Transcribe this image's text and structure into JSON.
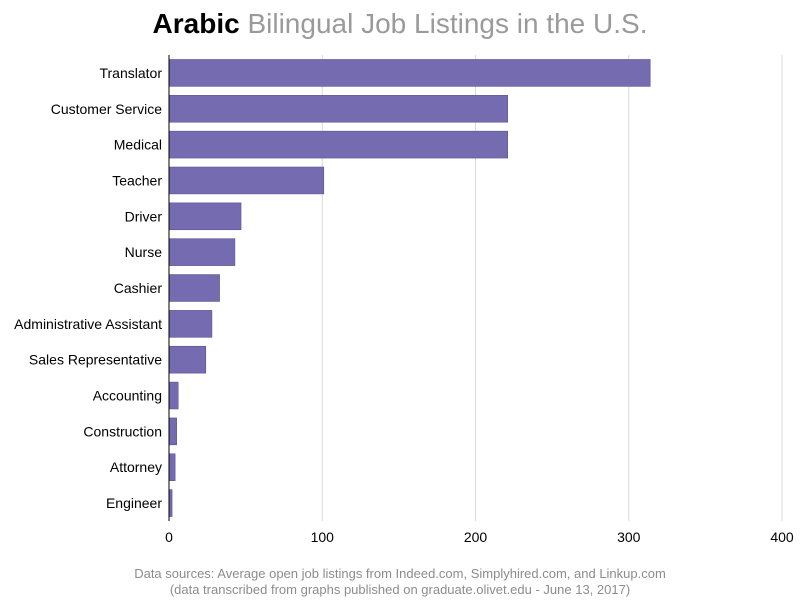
{
  "title": {
    "bold": "Arabic",
    "rest": "Bilingual Job Listings in the U.S."
  },
  "footnote": {
    "line1": "Data sources: Average open job listings from Indeed.com, Simplyhired.com, and Linkup.com",
    "line2": "(data transcribed from graphs published on graduate.olivet.edu - June 13, 2017)"
  },
  "colors": {
    "bar": "#756bb1",
    "grid": "#d9d9d9",
    "axis": "#000000",
    "text": "#000000"
  },
  "chart_data": {
    "type": "bar",
    "orientation": "horizontal",
    "title": "Arabic Bilingual Job Listings in the U.S.",
    "xlabel": "",
    "ylabel": "",
    "xlim": [
      0,
      400
    ],
    "xticks": [
      0,
      100,
      200,
      300,
      400
    ],
    "grid": true,
    "categories": [
      "Translator",
      "Customer Service",
      "Medical",
      "Teacher",
      "Driver",
      "Nurse",
      "Cashier",
      "Administrative Assistant",
      "Sales Representative",
      "Accounting",
      "Construction",
      "Attorney",
      "Engineer"
    ],
    "values": [
      314,
      221,
      221,
      101,
      47,
      43,
      33,
      28,
      24,
      6,
      5,
      4,
      2
    ]
  }
}
